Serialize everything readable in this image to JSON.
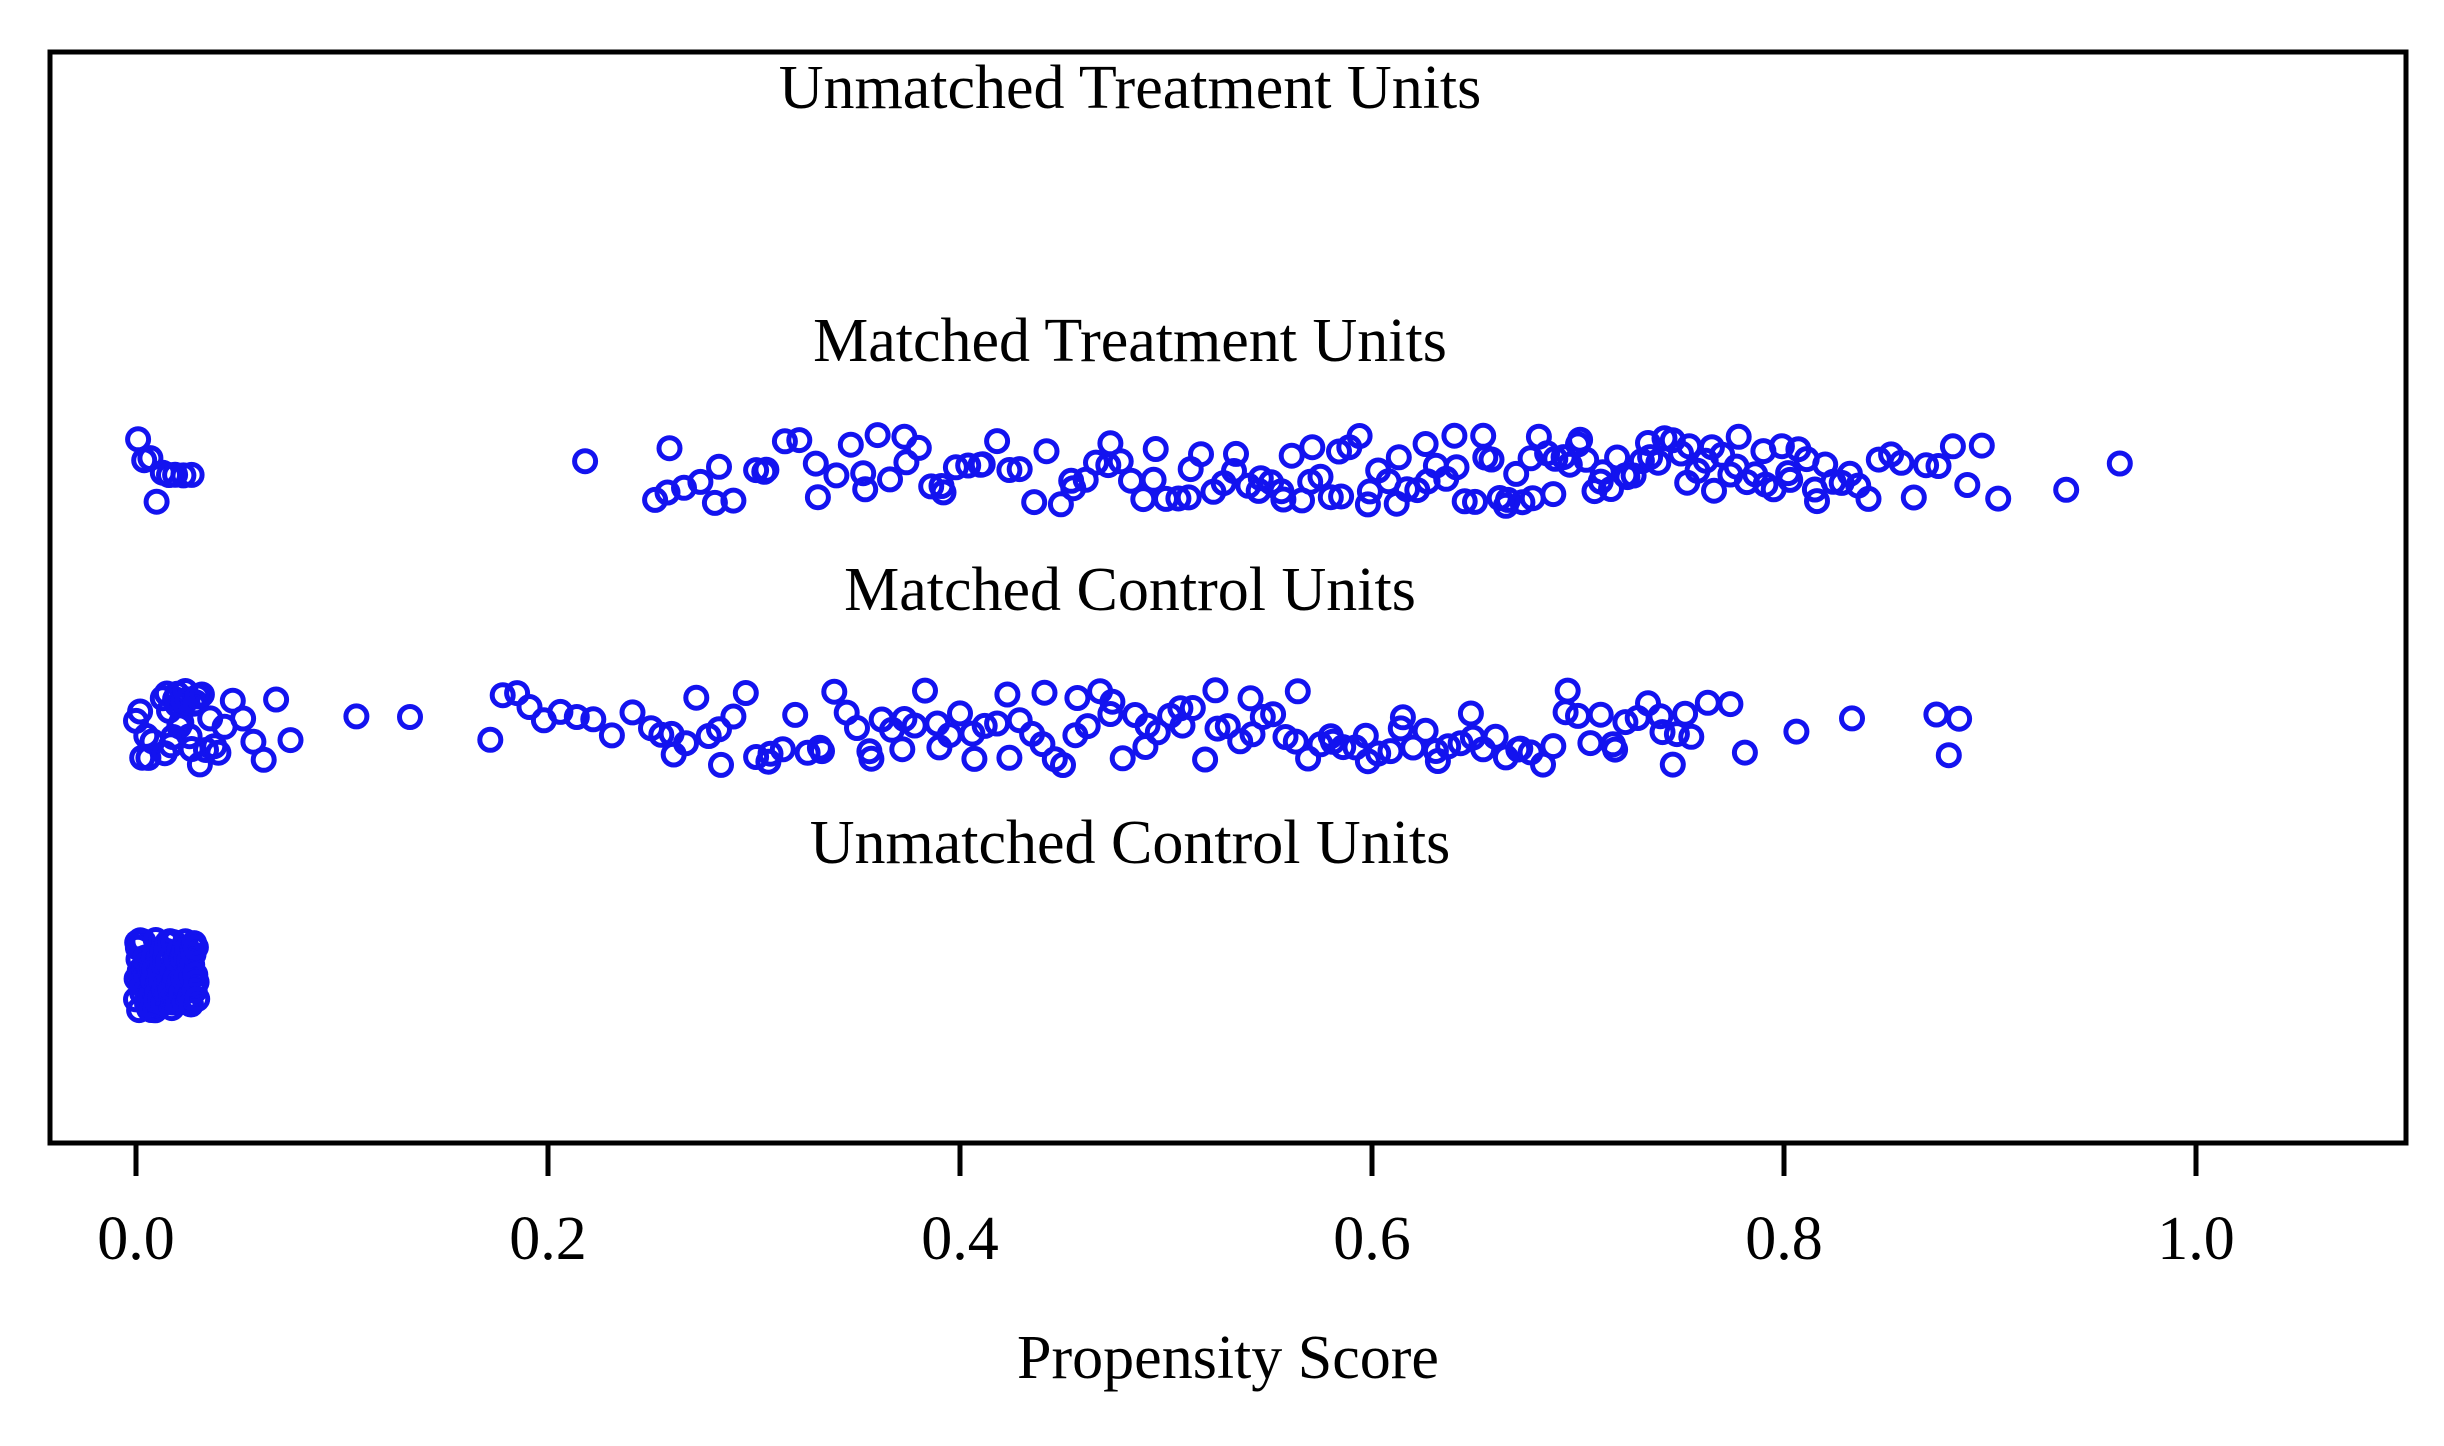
{
  "chart_data": {
    "type": "scatter",
    "subtype": "jittered-strip-plot",
    "xlabel": "Propensity Score",
    "xlim": [
      -0.04,
      1.1
    ],
    "x_ticks": [
      0.0,
      0.2,
      0.4,
      0.6,
      0.8,
      1.0
    ],
    "x_tick_labels": [
      "0.0",
      "0.2",
      "0.4",
      "0.6",
      "0.8",
      "1.0"
    ],
    "grid": false,
    "legend": false,
    "point_color": "#1313ef",
    "point_style": "open-circle",
    "groups": [
      {
        "label": "Unmatched Treatment Units",
        "points": []
      },
      {
        "label": "Matched Treatment Units",
        "points": [
          0.001,
          0.004,
          0.007,
          0.01,
          0.013,
          0.016,
          0.019,
          0.023,
          0.027,
          0.218,
          0.252,
          0.258,
          0.259,
          0.266,
          0.274,
          0.281,
          0.283,
          0.29,
          0.301,
          0.305,
          0.306,
          0.315,
          0.322,
          0.33,
          0.331,
          0.34,
          0.347,
          0.353,
          0.354,
          0.36,
          0.366,
          0.373,
          0.374,
          0.38,
          0.386,
          0.391,
          0.392,
          0.398,
          0.404,
          0.41,
          0.411,
          0.418,
          0.424,
          0.429,
          0.436,
          0.442,
          0.449,
          0.454,
          0.455,
          0.461,
          0.466,
          0.472,
          0.473,
          0.478,
          0.483,
          0.489,
          0.494,
          0.495,
          0.5,
          0.506,
          0.511,
          0.512,
          0.517,
          0.523,
          0.528,
          0.533,
          0.534,
          0.54,
          0.545,
          0.546,
          0.551,
          0.556,
          0.557,
          0.561,
          0.566,
          0.57,
          0.571,
          0.575,
          0.58,
          0.584,
          0.585,
          0.589,
          0.594,
          0.598,
          0.599,
          0.603,
          0.608,
          0.612,
          0.613,
          0.617,
          0.622,
          0.626,
          0.627,
          0.631,
          0.636,
          0.64,
          0.641,
          0.645,
          0.65,
          0.654,
          0.655,
          0.658,
          0.662,
          0.665,
          0.666,
          0.67,
          0.673,
          0.677,
          0.678,
          0.681,
          0.685,
          0.688,
          0.689,
          0.693,
          0.696,
          0.7,
          0.701,
          0.704,
          0.708,
          0.711,
          0.712,
          0.716,
          0.719,
          0.723,
          0.724,
          0.727,
          0.731,
          0.734,
          0.735,
          0.739,
          0.742,
          0.746,
          0.75,
          0.753,
          0.754,
          0.758,
          0.762,
          0.765,
          0.766,
          0.77,
          0.774,
          0.777,
          0.778,
          0.782,
          0.786,
          0.79,
          0.791,
          0.795,
          0.799,
          0.802,
          0.803,
          0.807,
          0.811,
          0.815,
          0.816,
          0.82,
          0.824,
          0.828,
          0.832,
          0.836,
          0.841,
          0.846,
          0.852,
          0.857,
          0.863,
          0.869,
          0.875,
          0.882,
          0.889,
          0.896,
          0.904,
          0.937,
          0.963
        ]
      },
      {
        "label": "Matched Control Units",
        "points": [
          0.0,
          0.002,
          0.003,
          0.005,
          0.006,
          0.008,
          0.013,
          0.014,
          0.015,
          0.016,
          0.017,
          0.018,
          0.019,
          0.02,
          0.02,
          0.021,
          0.022,
          0.023,
          0.024,
          0.025,
          0.026,
          0.027,
          0.028,
          0.029,
          0.03,
          0.031,
          0.032,
          0.034,
          0.036,
          0.038,
          0.04,
          0.043,
          0.047,
          0.052,
          0.057,
          0.062,
          0.068,
          0.075,
          0.107,
          0.133,
          0.172,
          0.178,
          0.185,
          0.191,
          0.198,
          0.206,
          0.214,
          0.222,
          0.231,
          0.241,
          0.25,
          0.255,
          0.26,
          0.261,
          0.267,
          0.272,
          0.278,
          0.283,
          0.284,
          0.29,
          0.296,
          0.301,
          0.307,
          0.308,
          0.314,
          0.32,
          0.326,
          0.332,
          0.333,
          0.339,
          0.345,
          0.35,
          0.356,
          0.357,
          0.362,
          0.367,
          0.372,
          0.373,
          0.378,
          0.383,
          0.389,
          0.39,
          0.395,
          0.4,
          0.406,
          0.407,
          0.412,
          0.418,
          0.423,
          0.424,
          0.429,
          0.435,
          0.44,
          0.441,
          0.446,
          0.45,
          0.456,
          0.457,
          0.462,
          0.468,
          0.473,
          0.474,
          0.479,
          0.485,
          0.49,
          0.491,
          0.496,
          0.502,
          0.507,
          0.508,
          0.513,
          0.519,
          0.524,
          0.525,
          0.53,
          0.536,
          0.541,
          0.542,
          0.547,
          0.552,
          0.558,
          0.563,
          0.564,
          0.569,
          0.575,
          0.58,
          0.581,
          0.586,
          0.592,
          0.597,
          0.598,
          0.603,
          0.609,
          0.614,
          0.615,
          0.62,
          0.626,
          0.631,
          0.632,
          0.637,
          0.643,
          0.648,
          0.649,
          0.654,
          0.66,
          0.665,
          0.671,
          0.672,
          0.677,
          0.683,
          0.688,
          0.694,
          0.695,
          0.7,
          0.706,
          0.711,
          0.717,
          0.718,
          0.723,
          0.729,
          0.734,
          0.74,
          0.741,
          0.746,
          0.748,
          0.752,
          0.755,
          0.763,
          0.774,
          0.781,
          0.806,
          0.833,
          0.874,
          0.88,
          0.885
        ]
      },
      {
        "label": "Unmatched Control Units",
        "points": [
          0.0,
          0.0003,
          0.0006,
          0.0009,
          0.0012,
          0.0015,
          0.0018,
          0.0021,
          0.0024,
          0.0027,
          0.003,
          0.0033,
          0.0036,
          0.0039,
          0.0042,
          0.0045,
          0.0048,
          0.0051,
          0.0054,
          0.0057,
          0.006,
          0.0063,
          0.0066,
          0.0069,
          0.0072,
          0.0075,
          0.0078,
          0.0081,
          0.0084,
          0.0087,
          0.009,
          0.0093,
          0.0096,
          0.0099,
          0.0102,
          0.0105,
          0.0108,
          0.0111,
          0.0114,
          0.0117,
          0.012,
          0.0123,
          0.0126,
          0.0129,
          0.0132,
          0.0135,
          0.0138,
          0.0141,
          0.0144,
          0.0147,
          0.015,
          0.0153,
          0.0156,
          0.0159,
          0.0162,
          0.0165,
          0.0168,
          0.0171,
          0.0174,
          0.0177,
          0.018,
          0.0183,
          0.0186,
          0.0189,
          0.0192,
          0.0195,
          0.0198,
          0.0201,
          0.0204,
          0.0207,
          0.021,
          0.0213,
          0.0216,
          0.0219,
          0.0222,
          0.0225,
          0.0228,
          0.0231,
          0.0234,
          0.0237,
          0.024,
          0.0243,
          0.0246,
          0.0249,
          0.0252,
          0.0255,
          0.0258,
          0.0261,
          0.0264,
          0.0267,
          0.027,
          0.0273,
          0.0276,
          0.0279,
          0.0282,
          0.0285,
          0.0288,
          0.0291,
          0.0294,
          0.0297
        ]
      }
    ]
  }
}
